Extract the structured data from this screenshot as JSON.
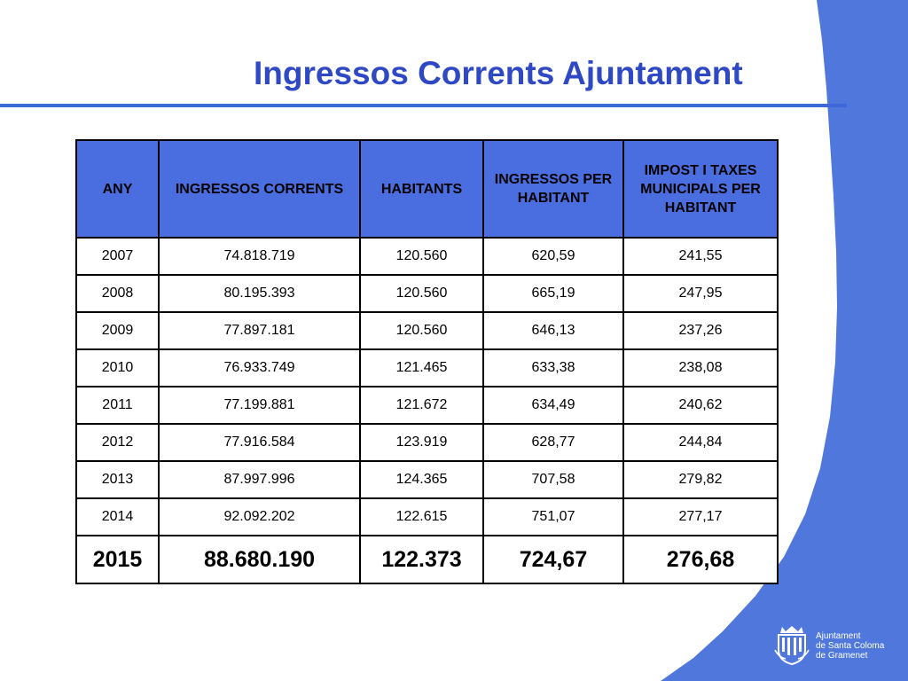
{
  "title": "Ingressos Corrents Ajuntament",
  "colors": {
    "accent": "#2f49c4",
    "header_fill": "#4a6ee0",
    "band": "#4f77dc"
  },
  "table": {
    "headers": [
      "ANY",
      "INGRESSOS CORRENTS",
      "HABITANTS",
      "INGRESSOS PER HABITANT",
      "IMPOST I TAXES MUNICIPALS PER HABITANT"
    ],
    "rows": [
      [
        "2007",
        "74.818.719",
        "120.560",
        "620,59",
        "241,55"
      ],
      [
        "2008",
        "80.195.393",
        "120.560",
        "665,19",
        "247,95"
      ],
      [
        "2009",
        "77.897.181",
        "120.560",
        "646,13",
        "237,26"
      ],
      [
        "2010",
        "76.933.749",
        "121.465",
        "633,38",
        "238,08"
      ],
      [
        "2011",
        "77.199.881",
        "121.672",
        "634,49",
        "240,62"
      ],
      [
        "2012",
        "77.916.584",
        "123.919",
        "628,77",
        "244,84"
      ],
      [
        "2013",
        "87.997.996",
        "124.365",
        "707,58",
        "279,82"
      ],
      [
        "2014",
        "92.092.202",
        "122.615",
        "751,07",
        "277,17"
      ],
      [
        "2015",
        "88.680.190",
        "122.373",
        "724,67",
        "276,68"
      ]
    ]
  },
  "logo": {
    "icon": "coat-of-arms-icon",
    "lines": [
      "Ajuntament",
      "de Santa Coloma",
      "de Gramenet"
    ]
  }
}
